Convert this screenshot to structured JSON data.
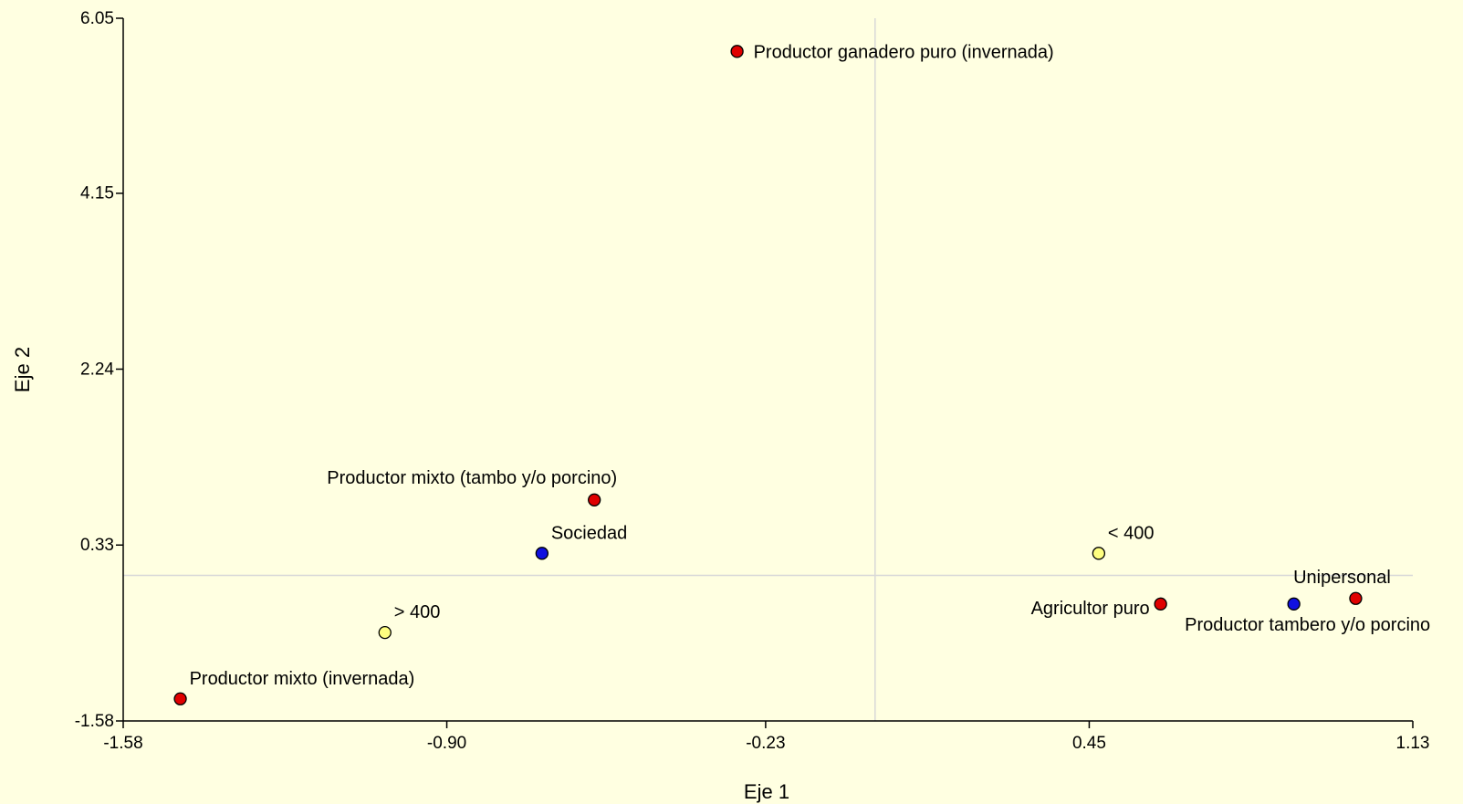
{
  "chart_data": {
    "type": "scatter",
    "xlabel": "Eje 1",
    "ylabel": "Eje 2",
    "xlim": [
      -1.58,
      1.13
    ],
    "ylim": [
      -1.58,
      6.05
    ],
    "xticks": [
      "-1.58",
      "-0.90",
      "-0.23",
      "0.45",
      "1.13"
    ],
    "yticks": [
      "-1.58",
      "0.33",
      "2.24",
      "4.15",
      "6.05"
    ],
    "reference_lines": {
      "x": 0.0,
      "y": 0.0
    },
    "grid": false,
    "colors": {
      "background": "#FFFFE1",
      "red": "#E00000",
      "blue": "#1010E0",
      "yellow": "#FFFF80",
      "reference_line": "#D8D8D8"
    },
    "points": [
      {
        "label": "Productor ganadero puro (invernada)",
        "x": -0.29,
        "y": 5.69,
        "color": "red",
        "anchor": "right"
      },
      {
        "label": "Productor mixto (tambo y/o porcino)",
        "x": -0.59,
        "y": 0.82,
        "color": "red",
        "anchor": "above-left"
      },
      {
        "label": "Sociedad",
        "x": -0.7,
        "y": 0.24,
        "color": "blue",
        "anchor": "above-right"
      },
      {
        "label": "> 400",
        "x": -1.03,
        "y": -0.62,
        "color": "yellow",
        "anchor": "above-right"
      },
      {
        "label": "Productor mixto (invernada)",
        "x": -1.46,
        "y": -1.34,
        "color": "red",
        "anchor": "above-right"
      },
      {
        "label": "< 400",
        "x": 0.47,
        "y": 0.24,
        "color": "yellow",
        "anchor": "above-right"
      },
      {
        "label": "Agricultor puro",
        "x": 0.6,
        "y": -0.31,
        "color": "red",
        "anchor": "left"
      },
      {
        "label": "Productor tambero y/o porcino",
        "x": 0.88,
        "y": -0.31,
        "color": "blue",
        "anchor": "below"
      },
      {
        "label": "Unipersonal",
        "x": 1.01,
        "y": -0.25,
        "color": "red",
        "anchor": "above"
      }
    ]
  }
}
